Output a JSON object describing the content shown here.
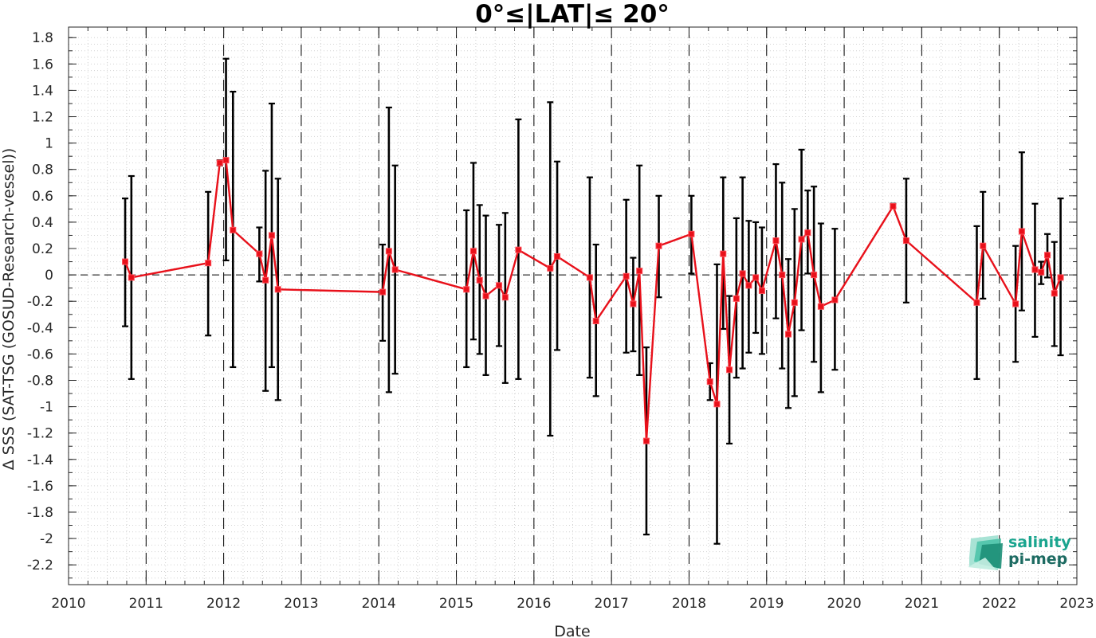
{
  "chart_data": {
    "type": "line",
    "title": "0°≤|LAT|≤ 20°",
    "xlabel": "Date",
    "ylabel": "Δ SSS (SAT-TSG (GOSUD-Research-vessel))",
    "xlim": [
      2010,
      2023
    ],
    "ylim": [
      -2.35,
      1.88
    ],
    "x_ticks": [
      "2010",
      "2011",
      "2012",
      "2013",
      "2014",
      "2015",
      "2016",
      "2017",
      "2018",
      "2019",
      "2020",
      "2021",
      "2022",
      "2023"
    ],
    "y_ticks": [
      "1.8",
      "1.6",
      "1.4",
      "1.2",
      "1",
      "0.8",
      "0.6",
      "0.4",
      "0.2",
      "0",
      "-0.2",
      "-0.4",
      "-0.6",
      "-0.8",
      "-1",
      "-1.2",
      "-1.4",
      "-1.6",
      "-1.8",
      "-2",
      "-2.2"
    ],
    "grid": "minor dotted",
    "year_lines": "dashed vertical at each year",
    "zero_line": "dashed horizontal at 0",
    "series": [
      {
        "color": "#e8101a",
        "errorbar_color": "#000000",
        "points": [
          {
            "x": 2010.73,
            "y": 0.1,
            "lo": -0.39,
            "hi": 0.58
          },
          {
            "x": 2010.81,
            "y": -0.02,
            "lo": -0.79,
            "hi": 0.75
          },
          {
            "x": 2011.8,
            "y": 0.09,
            "lo": -0.46,
            "hi": 0.63
          },
          {
            "x": 2011.95,
            "y": 0.85,
            "lo": 0.83,
            "hi": 0.87
          },
          {
            "x": 2012.03,
            "y": 0.87,
            "lo": 0.11,
            "hi": 1.64
          },
          {
            "x": 2012.12,
            "y": 0.34,
            "lo": -0.7,
            "hi": 1.39
          },
          {
            "x": 2012.46,
            "y": 0.16,
            "lo": -0.05,
            "hi": 0.36
          },
          {
            "x": 2012.54,
            "y": -0.04,
            "lo": -0.88,
            "hi": 0.79
          },
          {
            "x": 2012.62,
            "y": 0.3,
            "lo": -0.7,
            "hi": 1.3
          },
          {
            "x": 2012.7,
            "y": -0.11,
            "lo": -0.95,
            "hi": 0.73
          },
          {
            "x": 2014.05,
            "y": -0.13,
            "lo": -0.5,
            "hi": 0.23
          },
          {
            "x": 2014.13,
            "y": 0.18,
            "lo": -0.89,
            "hi": 1.27
          },
          {
            "x": 2014.21,
            "y": 0.04,
            "lo": -0.75,
            "hi": 0.83
          },
          {
            "x": 2015.13,
            "y": -0.11,
            "lo": -0.7,
            "hi": 0.49
          },
          {
            "x": 2015.22,
            "y": 0.18,
            "lo": -0.49,
            "hi": 0.85
          },
          {
            "x": 2015.3,
            "y": -0.04,
            "lo": -0.6,
            "hi": 0.53
          },
          {
            "x": 2015.38,
            "y": -0.16,
            "lo": -0.76,
            "hi": 0.45
          },
          {
            "x": 2015.55,
            "y": -0.08,
            "lo": -0.54,
            "hi": 0.38
          },
          {
            "x": 2015.63,
            "y": -0.17,
            "lo": -0.82,
            "hi": 0.47
          },
          {
            "x": 2015.8,
            "y": 0.19,
            "lo": -0.79,
            "hi": 1.18
          },
          {
            "x": 2016.21,
            "y": 0.05,
            "lo": -1.22,
            "hi": 1.31
          },
          {
            "x": 2016.3,
            "y": 0.14,
            "lo": -0.57,
            "hi": 0.86
          },
          {
            "x": 2016.72,
            "y": -0.02,
            "lo": -0.78,
            "hi": 0.74
          },
          {
            "x": 2016.8,
            "y": -0.35,
            "lo": -0.92,
            "hi": 0.23
          },
          {
            "x": 2017.19,
            "y": -0.01,
            "lo": -0.59,
            "hi": 0.57
          },
          {
            "x": 2017.28,
            "y": -0.22,
            "lo": -0.58,
            "hi": 0.13
          },
          {
            "x": 2017.36,
            "y": 0.03,
            "lo": -0.76,
            "hi": 0.83
          },
          {
            "x": 2017.45,
            "y": -1.26,
            "lo": -1.97,
            "hi": -0.55
          },
          {
            "x": 2017.61,
            "y": 0.22,
            "lo": -0.17,
            "hi": 0.6
          },
          {
            "x": 2018.03,
            "y": 0.31,
            "lo": 0.01,
            "hi": 0.6
          },
          {
            "x": 2018.27,
            "y": -0.81,
            "lo": -0.95,
            "hi": -0.67
          },
          {
            "x": 2018.36,
            "y": -0.98,
            "lo": -2.04,
            "hi": 0.08
          },
          {
            "x": 2018.44,
            "y": 0.16,
            "lo": -0.41,
            "hi": 0.74
          },
          {
            "x": 2018.52,
            "y": -0.72,
            "lo": -1.28,
            "hi": -0.16
          },
          {
            "x": 2018.61,
            "y": -0.18,
            "lo": -0.78,
            "hi": 0.43
          },
          {
            "x": 2018.69,
            "y": 0.01,
            "lo": -0.71,
            "hi": 0.74
          },
          {
            "x": 2018.77,
            "y": -0.08,
            "lo": -0.59,
            "hi": 0.41
          },
          {
            "x": 2018.86,
            "y": -0.02,
            "lo": -0.44,
            "hi": 0.4
          },
          {
            "x": 2018.94,
            "y": -0.12,
            "lo": -0.6,
            "hi": 0.36
          },
          {
            "x": 2019.12,
            "y": 0.26,
            "lo": -0.33,
            "hi": 0.84
          },
          {
            "x": 2019.2,
            "y": 0.0,
            "lo": -0.71,
            "hi": 0.7
          },
          {
            "x": 2019.28,
            "y": -0.45,
            "lo": -1.01,
            "hi": 0.12
          },
          {
            "x": 2019.36,
            "y": -0.21,
            "lo": -0.92,
            "hi": 0.5
          },
          {
            "x": 2019.45,
            "y": 0.27,
            "lo": -0.42,
            "hi": 0.95
          },
          {
            "x": 2019.53,
            "y": 0.32,
            "lo": 0.01,
            "hi": 0.64
          },
          {
            "x": 2019.61,
            "y": 0.0,
            "lo": -0.66,
            "hi": 0.67
          },
          {
            "x": 2019.7,
            "y": -0.24,
            "lo": -0.89,
            "hi": 0.39
          },
          {
            "x": 2019.88,
            "y": -0.19,
            "lo": -0.72,
            "hi": 0.35
          },
          {
            "x": 2020.63,
            "y": 0.52,
            "lo": 0.51,
            "hi": 0.54
          },
          {
            "x": 2020.8,
            "y": 0.26,
            "lo": -0.21,
            "hi": 0.73
          },
          {
            "x": 2021.71,
            "y": -0.21,
            "lo": -0.79,
            "hi": 0.37
          },
          {
            "x": 2021.79,
            "y": 0.22,
            "lo": -0.18,
            "hi": 0.63
          },
          {
            "x": 2022.21,
            "y": -0.22,
            "lo": -0.66,
            "hi": 0.22
          },
          {
            "x": 2022.29,
            "y": 0.33,
            "lo": -0.27,
            "hi": 0.93
          },
          {
            "x": 2022.46,
            "y": 0.04,
            "lo": -0.47,
            "hi": 0.54
          },
          {
            "x": 2022.54,
            "y": 0.02,
            "lo": -0.07,
            "hi": 0.1
          },
          {
            "x": 2022.62,
            "y": 0.15,
            "lo": -0.02,
            "hi": 0.31
          },
          {
            "x": 2022.71,
            "y": -0.14,
            "lo": -0.54,
            "hi": 0.25
          },
          {
            "x": 2022.79,
            "y": -0.02,
            "lo": -0.61,
            "hi": 0.58
          }
        ]
      }
    ]
  },
  "logo": {
    "line1": "salinity",
    "line2": "pi-mep",
    "color1": "#1aa58f",
    "color2": "#1d6b62"
  }
}
